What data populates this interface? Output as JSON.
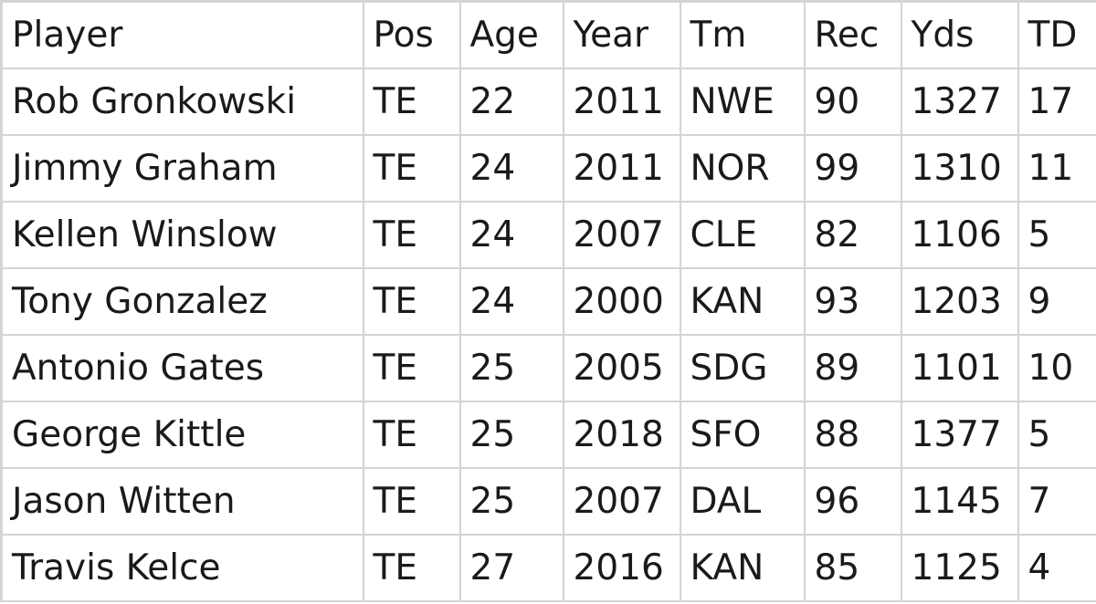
{
  "table": {
    "headers": [
      "Player",
      "Pos",
      "Age",
      "Year",
      "Tm",
      "Rec",
      "Yds",
      "TD"
    ],
    "rows": [
      [
        "Rob Gronkowski",
        "TE",
        "22",
        "2011",
        "NWE",
        "90",
        "1327",
        "17"
      ],
      [
        "Jimmy Graham",
        "TE",
        "24",
        "2011",
        "NOR",
        "99",
        "1310",
        "11"
      ],
      [
        "Kellen Winslow",
        "TE",
        "24",
        "2007",
        "CLE",
        "82",
        "1106",
        "5"
      ],
      [
        "Tony Gonzalez",
        "TE",
        "24",
        "2000",
        "KAN",
        "93",
        "1203",
        "9"
      ],
      [
        "Antonio Gates",
        "TE",
        "25",
        "2005",
        "SDG",
        "89",
        "1101",
        "10"
      ],
      [
        "George Kittle",
        "TE",
        "25",
        "2018",
        "SFO",
        "88",
        "1377",
        "5"
      ],
      [
        "Jason Witten",
        "TE",
        "25",
        "2007",
        "DAL",
        "96",
        "1145",
        "7"
      ],
      [
        "Travis Kelce",
        "TE",
        "27",
        "2016",
        "KAN",
        "85",
        "1125",
        "4"
      ]
    ]
  }
}
